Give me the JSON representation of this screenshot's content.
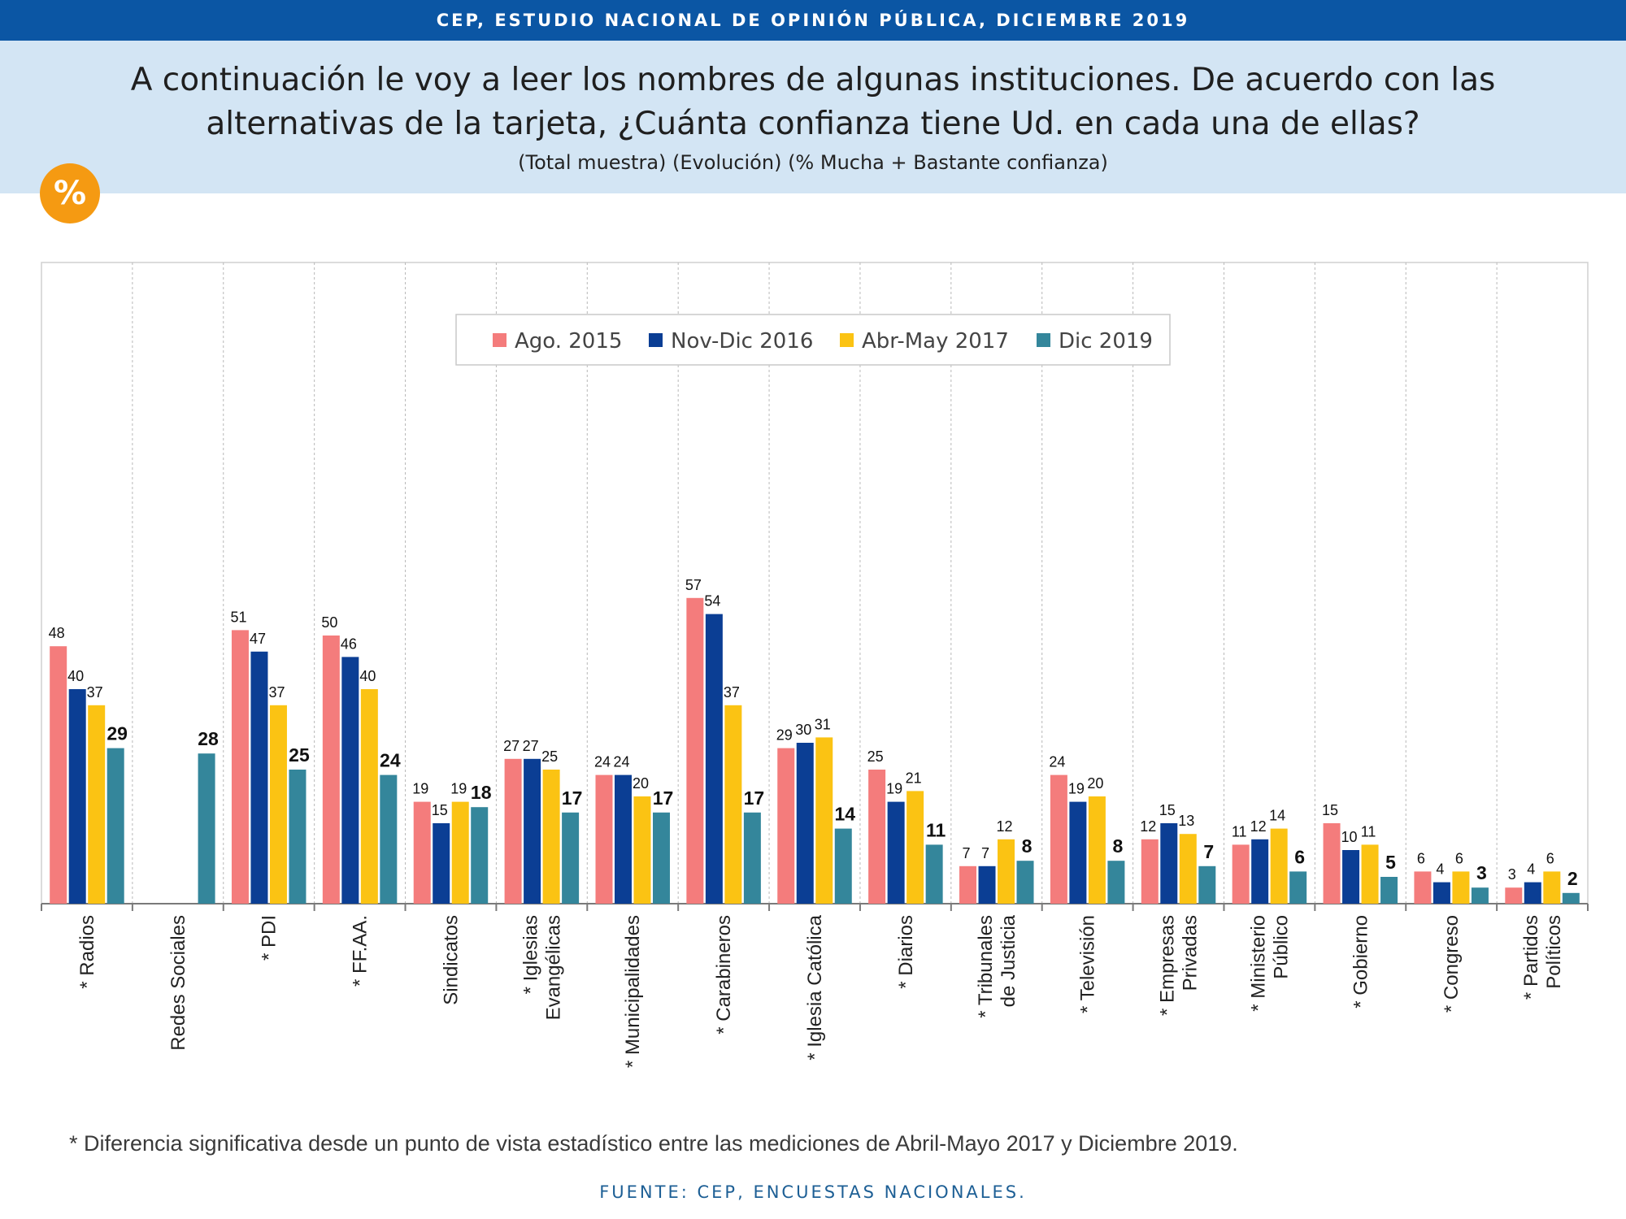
{
  "header": {
    "banner": "CEP, ESTUDIO NACIONAL DE OPINIÓN PÚBLICA, DICIEMBRE 2019",
    "question": "A continuación le voy a leer los nombres de algunas instituciones. De acuerdo con las alternativas de la tarjeta, ¿Cuánta confianza tiene Ud. en cada una de ellas?",
    "subtitle": "(Total muestra) (Evolución) (% Mucha + Bastante confianza)",
    "badge": "%"
  },
  "chart_data": {
    "type": "bar",
    "categories": [
      "* Radios",
      "Redes Sociales",
      "* PDI",
      "* FF.AA.",
      "Sindicatos",
      "* Iglesias Evangélicas",
      "* Municipalidades",
      "* Carabineros",
      "* Iglesia Católica",
      "* Diarios",
      "* Tribunales de Justicia",
      "* Televisión",
      "* Empresas Privadas",
      "* Ministerio Público",
      "* Gobierno",
      "* Congreso",
      "* Partidos Políticos"
    ],
    "series": [
      {
        "name": "Ago. 2015",
        "color": "#f47c7c",
        "values": [
          48,
          null,
          51,
          50,
          19,
          27,
          24,
          57,
          29,
          25,
          7,
          24,
          12,
          11,
          15,
          6,
          3
        ]
      },
      {
        "name": "Nov-Dic 2016",
        "color": "#0b3e94",
        "values": [
          40,
          null,
          47,
          46,
          15,
          27,
          24,
          54,
          30,
          19,
          7,
          19,
          15,
          12,
          10,
          4,
          4
        ]
      },
      {
        "name": "Abr-May 2017",
        "color": "#fbc313",
        "values": [
          37,
          null,
          37,
          40,
          19,
          25,
          20,
          37,
          31,
          21,
          12,
          20,
          13,
          14,
          11,
          6,
          6
        ]
      },
      {
        "name": "Dic 2019",
        "color": "#34869b",
        "values": [
          29,
          28,
          25,
          24,
          18,
          17,
          17,
          17,
          14,
          11,
          8,
          8,
          7,
          6,
          5,
          3,
          2
        ]
      }
    ],
    "ylim": [
      0,
      100
    ],
    "grid": "vertical category separators",
    "legend": "top-center",
    "highlight_series": "Dic 2019"
  },
  "footnote": "* Diferencia significativa desde un punto de vista estadístico entre las mediciones de Abril-Mayo 2017 y Diciembre 2019.",
  "source": "FUENTE: CEP, ENCUESTAS NACIONALES."
}
